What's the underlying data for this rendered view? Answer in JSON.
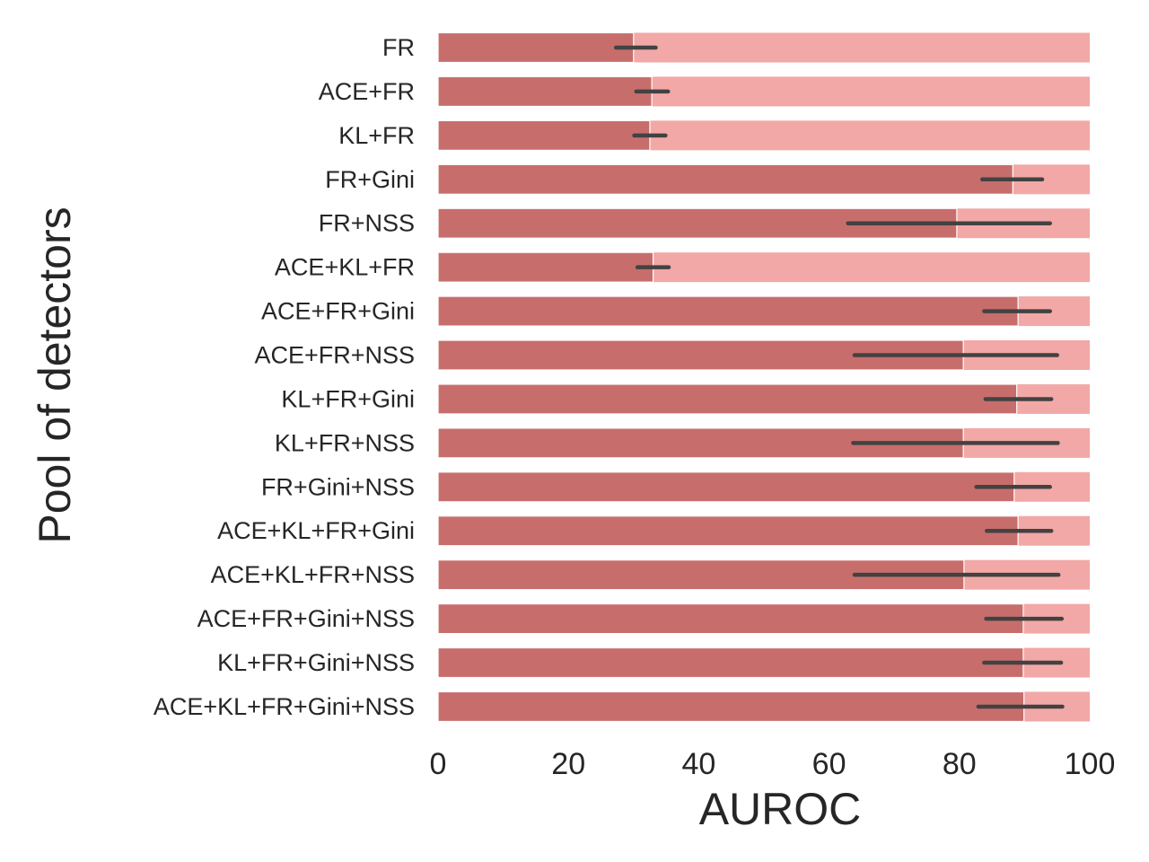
{
  "chart_data": {
    "type": "bar",
    "orientation": "horizontal",
    "xlabel": "AUROC",
    "ylabel": "Pool of detectors",
    "xlim": [
      0,
      100
    ],
    "xticks": [
      0,
      20,
      40,
      60,
      80,
      100
    ],
    "grid": false,
    "categories": [
      "FR",
      "ACE+FR",
      "KL+FR",
      "FR+Gini",
      "FR+NSS",
      "ACE+KL+FR",
      "ACE+FR+Gini",
      "ACE+FR+NSS",
      "KL+FR+Gini",
      "KL+FR+NSS",
      "FR+Gini+NSS",
      "ACE+KL+FR+Gini",
      "ACE+KL+FR+NSS",
      "ACE+FR+Gini+NSS",
      "KL+FR+Gini+NSS",
      "ACE+KL+FR+Gini+NSS"
    ],
    "series": [
      {
        "values": [
          100,
          100,
          100,
          100,
          100,
          100,
          100,
          100,
          100,
          100,
          100,
          100,
          100,
          100,
          100,
          100
        ],
        "color": "#f2a8a6"
      },
      {
        "values": [
          30.0,
          32.8,
          32.5,
          88.2,
          79.6,
          33.0,
          89.0,
          80.6,
          88.8,
          80.6,
          88.4,
          89.0,
          80.7,
          89.8,
          89.8,
          89.9
        ],
        "color": "#c76e6c",
        "error_low": [
          27.3,
          30.4,
          30.1,
          83.5,
          62.9,
          30.6,
          83.8,
          63.9,
          84.0,
          63.7,
          82.6,
          84.2,
          63.9,
          84.1,
          83.8,
          82.9
        ],
        "error_high": [
          33.4,
          35.3,
          34.9,
          92.7,
          93.9,
          35.4,
          93.9,
          95.0,
          94.1,
          95.1,
          93.9,
          94.1,
          95.2,
          95.7,
          95.6,
          95.8
        ],
        "error_color": "#424242"
      }
    ]
  }
}
